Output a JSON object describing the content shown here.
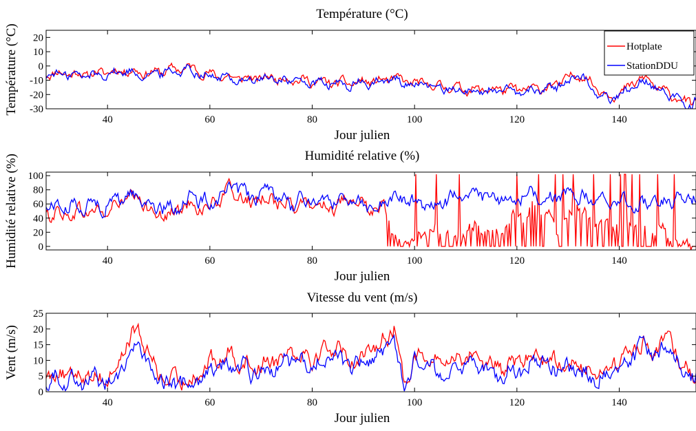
{
  "chart_data": [
    {
      "type": "line",
      "title": "Température (°C)",
      "xlabel": "Jour julien",
      "ylabel": "Température (°C)",
      "xlim": [
        28,
        155
      ],
      "ylim": [
        -30,
        25
      ],
      "xticks": [
        40,
        60,
        80,
        100,
        120,
        140
      ],
      "yticks": [
        -30,
        -20,
        -10,
        0,
        10,
        20
      ],
      "legend": "top-right",
      "noise": 2.5,
      "x": [
        28,
        32,
        36,
        40,
        44,
        48,
        52,
        56,
        60,
        64,
        68,
        72,
        76,
        80,
        84,
        88,
        92,
        96,
        100,
        104,
        108,
        112,
        116,
        120,
        124,
        128,
        132,
        134,
        136,
        138,
        140,
        142,
        144,
        146,
        148,
        150,
        152,
        154,
        155
      ],
      "series": [
        {
          "name": "Hotplate",
          "color": "#ff0000",
          "values": [
            -5,
            -5,
            -6,
            -4,
            -3,
            -5,
            -3,
            -1,
            -6,
            -8,
            -9,
            -8,
            -9,
            -11,
            -12,
            -12,
            -11,
            -9,
            -12,
            -14,
            -15,
            -17,
            -16,
            -17,
            -16,
            -13,
            -5,
            -10,
            -16,
            -20,
            -20,
            -15,
            -9,
            -10,
            -17,
            -20,
            -23,
            -26,
            -25
          ]
        },
        {
          "name": "StationDDU",
          "color": "#0000ff",
          "values": [
            -6,
            -6,
            -7,
            -5,
            -4,
            -6,
            -4,
            -2,
            -7,
            -9,
            -10,
            -9,
            -10,
            -12,
            -13,
            -13,
            -12,
            -10,
            -13,
            -15,
            -16,
            -18,
            -17,
            -19,
            -17,
            -14,
            -6,
            -12,
            -20,
            -23,
            -21,
            -16,
            -10,
            -11,
            -18,
            -21,
            -24,
            -27,
            -24
          ]
        }
      ]
    },
    {
      "type": "line",
      "title": "Humidité relative (%)",
      "xlabel": "Jour julien",
      "ylabel": "Humidité relative (%)",
      "xlim": [
        28,
        155
      ],
      "ylim": [
        -5,
        105
      ],
      "xticks": [
        40,
        60,
        80,
        100,
        120,
        140
      ],
      "yticks": [
        0,
        20,
        40,
        60,
        80,
        100
      ],
      "noise": 8,
      "x": [
        28,
        32,
        36,
        40,
        44,
        48,
        52,
        56,
        60,
        64,
        68,
        72,
        76,
        80,
        84,
        88,
        92,
        94,
        96,
        100,
        104,
        108,
        112,
        116,
        120,
        124,
        128,
        132,
        136,
        140,
        144,
        148,
        152,
        155
      ],
      "series": [
        {
          "name": "Hotplate",
          "color": "#ff0000",
          "values": [
            48,
            45,
            50,
            48,
            70,
            55,
            42,
            60,
            55,
            80,
            60,
            70,
            55,
            60,
            58,
            60,
            52,
            55,
            10,
            5,
            25,
            10,
            30,
            20,
            40,
            50,
            30,
            60,
            25,
            35,
            20,
            30,
            0,
            0
          ]
        },
        {
          "name": "StationDDU",
          "color": "#0000ff",
          "values": [
            58,
            55,
            60,
            58,
            75,
            62,
            50,
            68,
            62,
            85,
            68,
            76,
            60,
            66,
            64,
            70,
            58,
            60,
            70,
            62,
            58,
            70,
            75,
            65,
            70,
            75,
            68,
            70,
            62,
            65,
            60,
            62,
            70,
            68
          ]
        }
      ]
    },
    {
      "type": "line",
      "title": "Vitesse du vent (m/s)",
      "xlabel": "Jour julien",
      "ylabel": "Vent (m/s)",
      "xlim": [
        28,
        155
      ],
      "ylim": [
        0,
        25
      ],
      "xticks": [
        40,
        60,
        80,
        100,
        120,
        140
      ],
      "yticks": [
        0,
        5,
        10,
        15,
        20,
        25
      ],
      "noise": 2.2,
      "x": [
        28,
        32,
        36,
        40,
        42,
        44,
        46,
        48,
        50,
        52,
        56,
        60,
        64,
        68,
        72,
        76,
        80,
        84,
        88,
        92,
        94,
        96,
        98,
        100,
        104,
        108,
        112,
        116,
        120,
        124,
        128,
        132,
        136,
        140,
        144,
        148,
        150,
        152,
        155
      ],
      "series": [
        {
          "name": "Hotplate",
          "color": "#ff0000",
          "values": [
            7,
            5,
            6,
            4,
            8,
            17,
            19,
            12,
            6,
            3,
            4,
            9,
            12,
            8,
            10,
            14,
            11,
            15,
            10,
            13,
            18,
            20,
            3,
            12,
            9,
            11,
            12,
            7,
            9,
            12,
            10,
            8,
            6,
            10,
            15,
            14,
            18,
            9,
            6
          ]
        },
        {
          "name": "StationDDU",
          "color": "#0000ff",
          "values": [
            5,
            4,
            4,
            3,
            6,
            12,
            14,
            9,
            4,
            2,
            3,
            7,
            9,
            6,
            8,
            10,
            8,
            11,
            7,
            10,
            14,
            15,
            2,
            10,
            6,
            8,
            9,
            5,
            7,
            9,
            8,
            6,
            4,
            8,
            13,
            12,
            16,
            7,
            4
          ]
        }
      ]
    }
  ]
}
